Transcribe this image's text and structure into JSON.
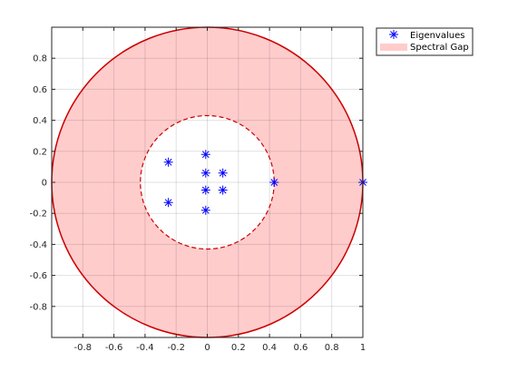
{
  "chart_data": {
    "type": "scatter",
    "title": "",
    "xlabel": "",
    "ylabel": "",
    "xlim": [
      -1,
      1
    ],
    "ylim": [
      -1,
      1
    ],
    "grid": true,
    "legend_position": "outside-top-right",
    "x_ticks": [
      "-0.8",
      "-0.6",
      "-0.4",
      "-0.2",
      "0",
      "0.2",
      "0.4",
      "0.6",
      "0.8",
      "1"
    ],
    "y_ticks": [
      "0.8",
      "0.6",
      "0.4",
      "0.2",
      "0",
      "-0.2",
      "-0.4",
      "-0.6",
      "-0.8"
    ],
    "series": [
      {
        "name": "Eigenvalues",
        "marker": "asterisk",
        "color": "#0000ff",
        "points": [
          {
            "x": 1.0,
            "y": 0.0
          },
          {
            "x": 0.43,
            "y": 0.0
          },
          {
            "x": -0.25,
            "y": 0.13
          },
          {
            "x": -0.25,
            "y": -0.13
          },
          {
            "x": -0.01,
            "y": 0.18
          },
          {
            "x": -0.01,
            "y": -0.18
          },
          {
            "x": -0.01,
            "y": 0.06
          },
          {
            "x": -0.01,
            "y": -0.05
          },
          {
            "x": 0.1,
            "y": 0.06
          },
          {
            "x": 0.1,
            "y": -0.05
          }
        ]
      },
      {
        "name": "Spectral Gap",
        "shape": "annulus",
        "fill_color": "#ffcccc",
        "edge_color": "#cc0000",
        "outer_radius": 1.0,
        "inner_radius": 0.43
      }
    ]
  }
}
